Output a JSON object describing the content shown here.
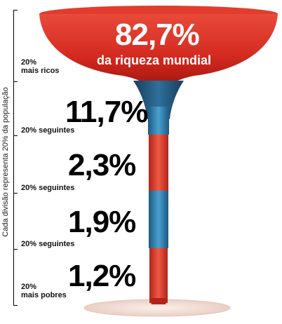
{
  "axis_label": "Cada divisão representa 20% da população",
  "top": {
    "percent": "82,7%",
    "caption": "da riqueza mundial",
    "group_label_line1": "20%",
    "group_label_line2": "mais ricos"
  },
  "segments": [
    {
      "percent": "11,7%",
      "group_label_line1": "20% seguintes",
      "group_label_line2": ""
    },
    {
      "percent": "2,3%",
      "group_label_line1": "20% seguintes",
      "group_label_line2": ""
    },
    {
      "percent": "1,9%",
      "group_label_line1": "20% seguintes",
      "group_label_line2": ""
    },
    {
      "percent": "1,2%",
      "group_label_line1": "20%",
      "group_label_line2": "mais pobres"
    }
  ],
  "colors": {
    "red": "#d83a2a",
    "dark_red": "#b0221a",
    "blue": "#3a86b5",
    "dark_blue": "#1f5a82",
    "base": "#f3e3dc"
  }
}
